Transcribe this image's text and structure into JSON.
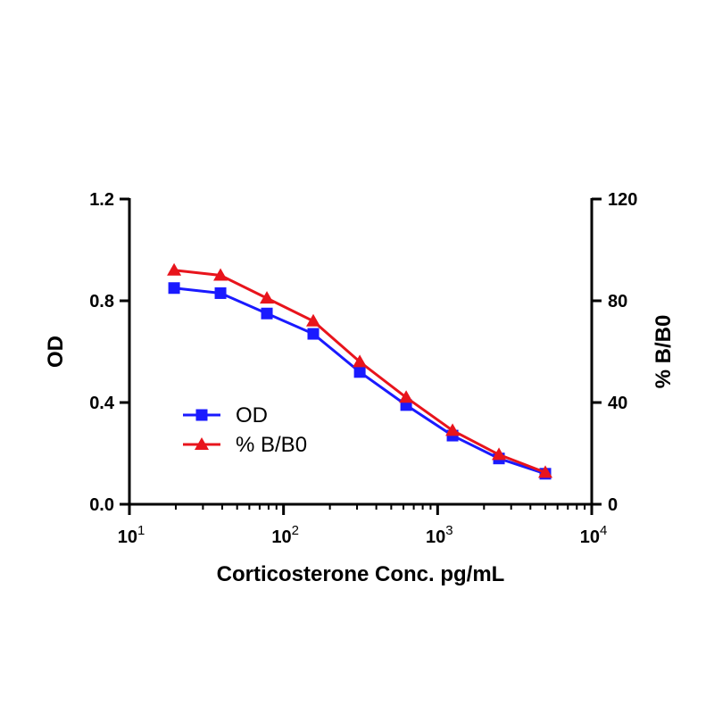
{
  "chart_data": {
    "type": "line",
    "xlabel": "Corticosterone Conc. pg/mL",
    "ylabel": "OD",
    "y2label": "% B/B0",
    "x_scale": "log10",
    "xlim": [
      10,
      10000
    ],
    "ylim": [
      0,
      1.2
    ],
    "y2lim": [
      0,
      120
    ],
    "x_ticks": [
      10,
      100,
      1000,
      10000
    ],
    "x_tick_labels": [
      {
        "base": "10",
        "exp": "1"
      },
      {
        "base": "10",
        "exp": "2"
      },
      {
        "base": "10",
        "exp": "3"
      },
      {
        "base": "10",
        "exp": "4"
      }
    ],
    "y_ticks": [
      "0.0",
      "0.4",
      "0.8",
      "1.2"
    ],
    "y2_ticks": [
      "0",
      "40",
      "80",
      "120"
    ],
    "grid": false,
    "legend_position": "center-left",
    "series": [
      {
        "name": "OD",
        "axis": "left",
        "color": "#1a1aff",
        "marker": "square",
        "x": [
          19.5,
          39,
          78,
          156,
          312.5,
          625,
          1250,
          2500,
          5000
        ],
        "y": [
          0.85,
          0.83,
          0.75,
          0.67,
          0.52,
          0.39,
          0.27,
          0.18,
          0.12
        ]
      },
      {
        "name": "% B/B0",
        "axis": "right",
        "color": "#e8141c",
        "marker": "triangle",
        "x": [
          19.5,
          39,
          78,
          156,
          312.5,
          625,
          1250,
          2500,
          5000
        ],
        "y": [
          92,
          90,
          81,
          72,
          56,
          42,
          29,
          19.5,
          12.5
        ]
      }
    ]
  }
}
